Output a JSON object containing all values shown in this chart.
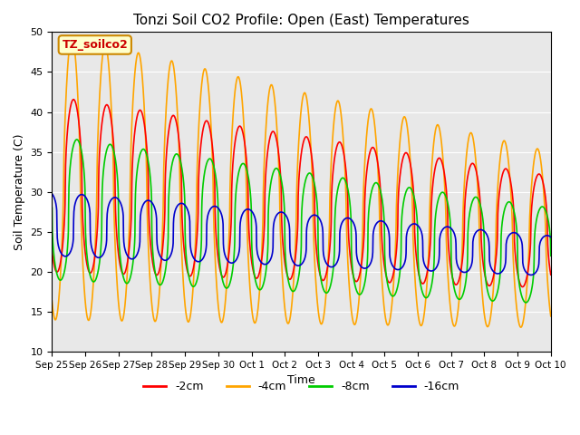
{
  "title": "Tonzi Soil CO2 Profile: Open (East) Temperatures",
  "xlabel": "Time",
  "ylabel": "Soil Temperature (C)",
  "ylim": [
    10,
    50
  ],
  "background_color": "#e8e8e8",
  "legend_label": "TZ_soilco2",
  "legend_label_color": "#cc0000",
  "legend_label_bg": "#ffffcc",
  "legend_label_border": "#cc8800",
  "tick_labels": [
    "Sep 25",
    "Sep 26",
    "Sep 27",
    "Sep 28",
    "Sep 29",
    "Sep 30",
    "Oct 1",
    "Oct 2",
    "Oct 3",
    "Oct 4",
    "Oct 5",
    "Oct 6",
    "Oct 7",
    "Oct 8",
    "Oct 9",
    "Oct 10"
  ],
  "legend_entries": [
    "-2cm",
    "-4cm",
    "-8cm",
    "-16cm"
  ],
  "legend_colors": [
    "#ff0000",
    "#ffa500",
    "#00cc00",
    "#0000cc"
  ],
  "series_linewidth": 1.2
}
